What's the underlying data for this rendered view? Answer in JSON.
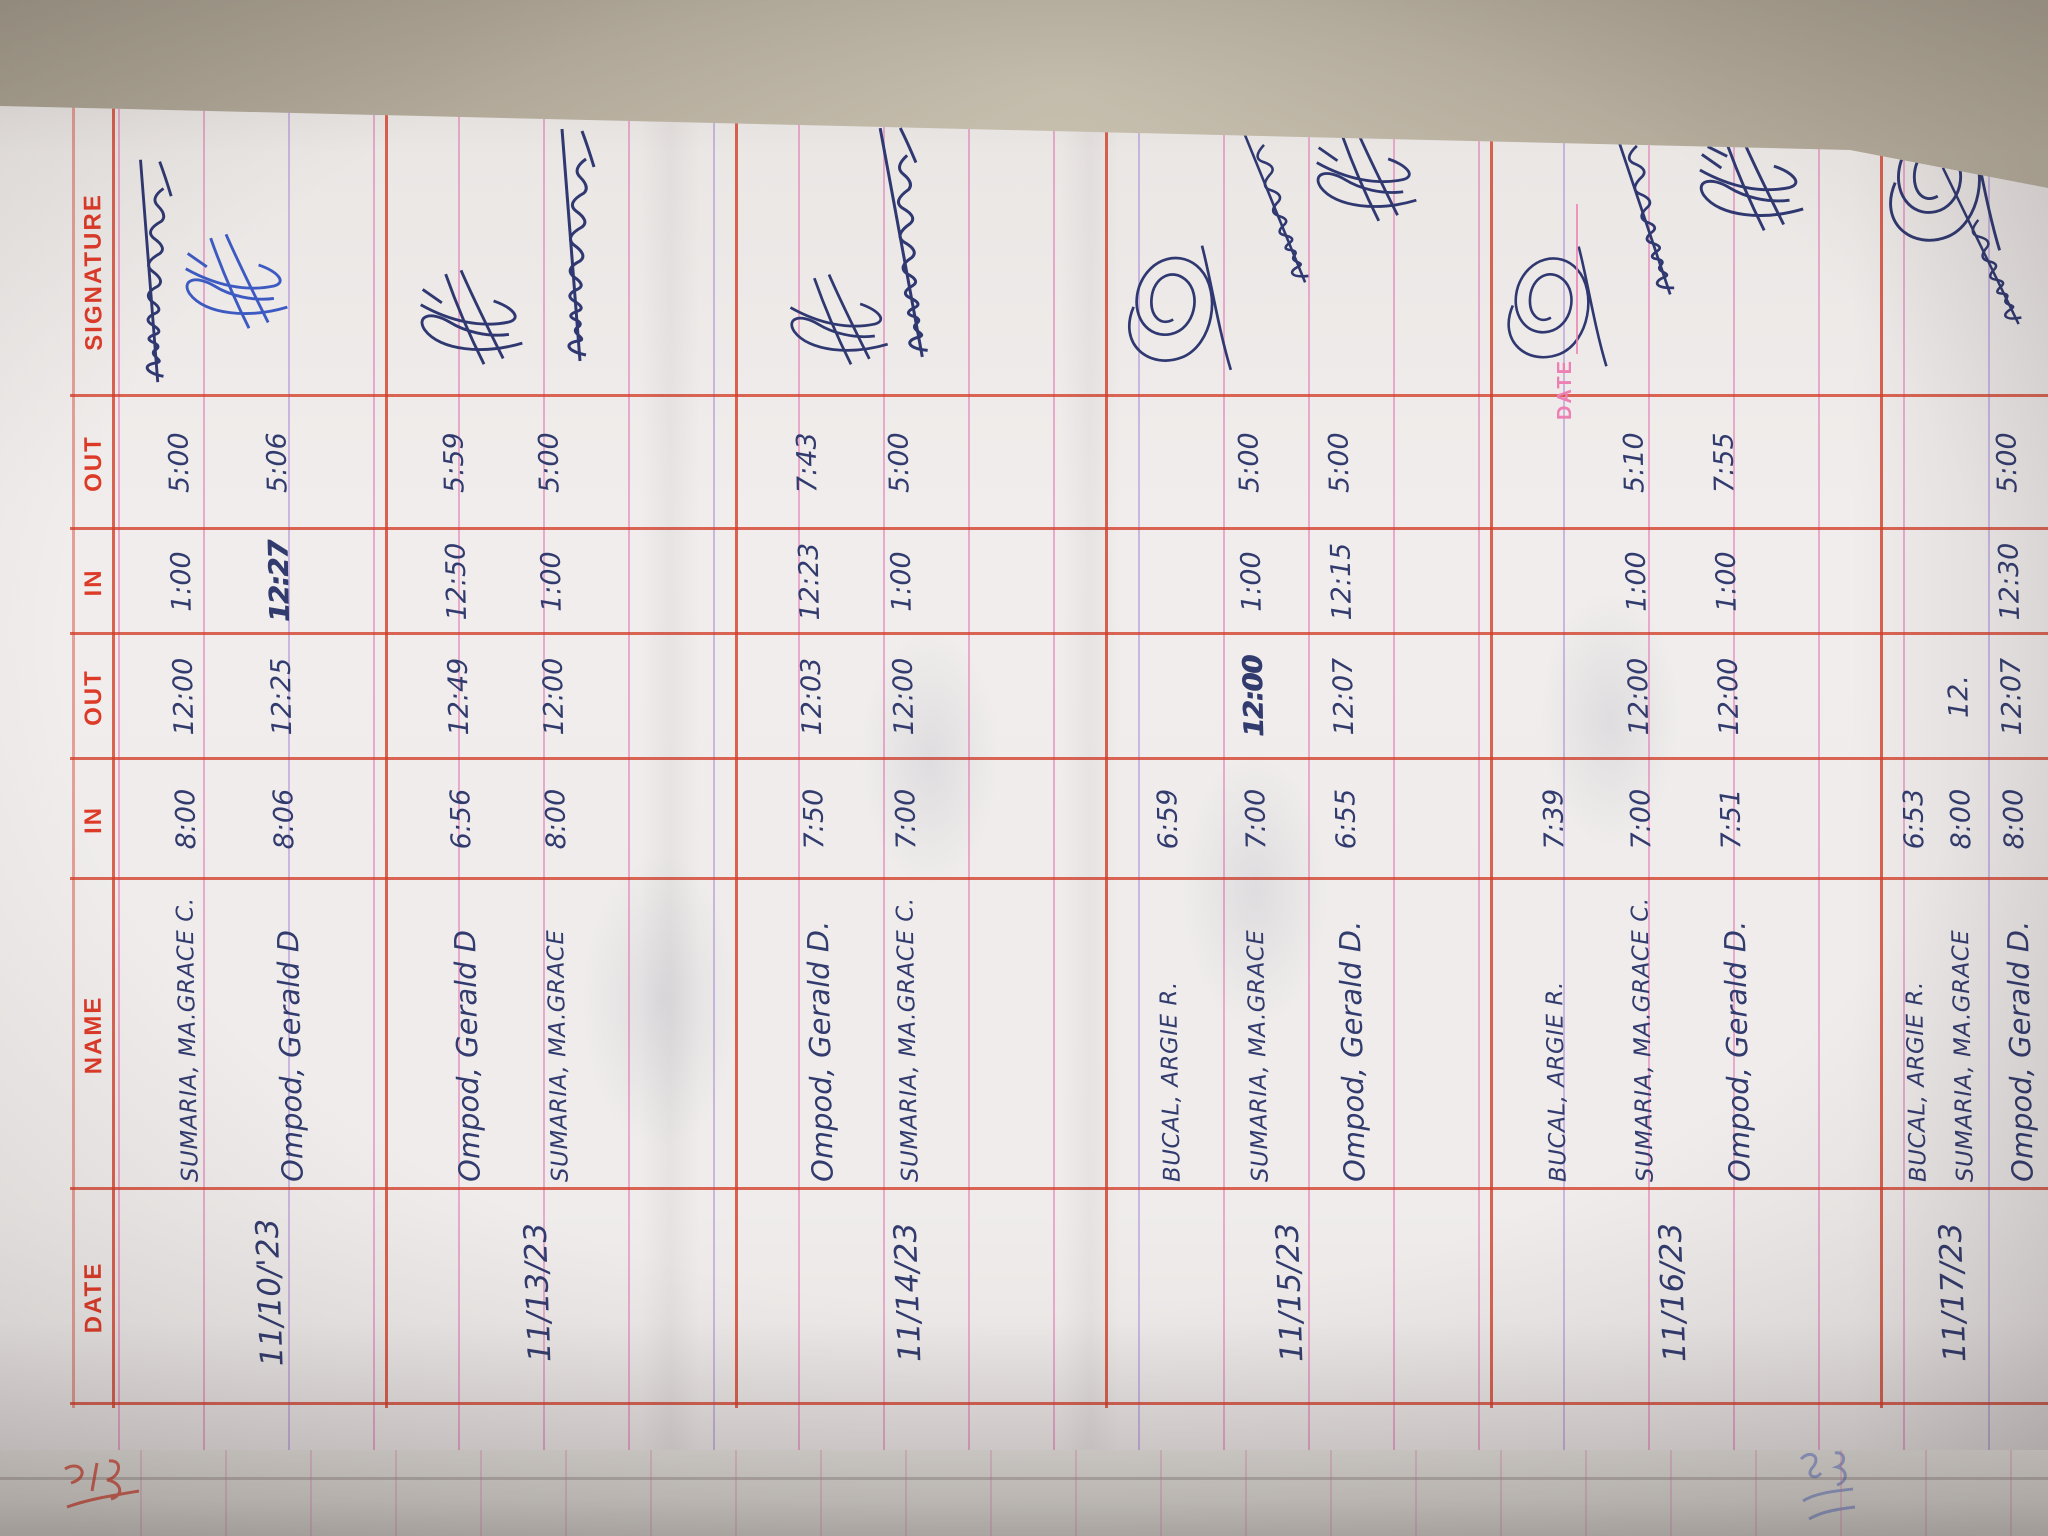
{
  "colors": {
    "grid_red": "#d33e29",
    "header_red": "#dd3a28",
    "entry_ink": "#323b6e",
    "entry_ink_blue": "#3d5ac2",
    "ruling_pink": "#e068ac",
    "printed_pink": "#ee7fb2",
    "paper": "#efeceb",
    "desk": "#b5ac9c"
  },
  "header": {
    "labels": [
      "DATE",
      "NAME",
      "IN",
      "OUT",
      "IN",
      "OUT",
      "SIGNATURE"
    ]
  },
  "printed": {
    "date_label": "DATE"
  },
  "rows": [
    {
      "date": "11/10/'23",
      "entries": [
        {
          "name": "SUMARIA, MA.GRACE C.",
          "in_am": "8:00",
          "out_noon": "12:00",
          "in_pm": "1:00",
          "out_pm": "5:00"
        },
        {
          "name": "Ompod, Gerald D",
          "in_am": "8:06",
          "out_noon": "12:25",
          "in_pm": "12:27",
          "out_pm": "5:06"
        }
      ]
    },
    {
      "date": "11/13/23",
      "entries": [
        {
          "name": "Ompod, Gerald D",
          "in_am": "6:56",
          "out_noon": "12:49",
          "in_pm": "12:50",
          "out_pm": "5:59"
        },
        {
          "name": "SUMARIA, MA.GRACE",
          "in_am": "8:00",
          "out_noon": "12:00",
          "in_pm": "1:00",
          "out_pm": "5:00"
        }
      ]
    },
    {
      "date": "11/14/23",
      "entries": [
        {
          "name": "Ompod, Gerald D.",
          "in_am": "7:50",
          "out_noon": "12:03",
          "in_pm": "12:23",
          "out_pm": "7:43"
        },
        {
          "name": "SUMARIA, MA.GRACE C.",
          "in_am": "7:00",
          "out_noon": "12:00",
          "in_pm": "1:00",
          "out_pm": "5:00"
        }
      ]
    },
    {
      "date": "11/15/23",
      "entries": [
        {
          "name": "BUCAL, ARGIE R.",
          "in_am": "6:59",
          "out_noon": "",
          "in_pm": "",
          "out_pm": ""
        },
        {
          "name": "SUMARIA, MA.GRACE",
          "in_am": "7:00",
          "out_noon": "12:00",
          "in_pm": "1:00",
          "out_pm": "5:00"
        },
        {
          "name": "Ompod, Gerald D.",
          "in_am": "6:55",
          "out_noon": "12:07",
          "in_pm": "12:15",
          "out_pm": "5:00"
        }
      ]
    },
    {
      "date": "11/16/23",
      "entries": [
        {
          "name": "BUCAL, ARGIE R.",
          "in_am": "7:39",
          "out_noon": "",
          "in_pm": "",
          "out_pm": ""
        },
        {
          "name": "SUMARIA, MA.GRACE C.",
          "in_am": "7:00",
          "out_noon": "12:00",
          "in_pm": "1:00",
          "out_pm": "5:10"
        },
        {
          "name": "Ompod, Gerald D.",
          "in_am": "7:51",
          "out_noon": "12:00",
          "in_pm": "1:00",
          "out_pm": "7:55"
        }
      ]
    },
    {
      "date": "11/17/23",
      "entries": [
        {
          "name": "BUCAL, ARGIE R.",
          "in_am": "6:53",
          "out_noon": "",
          "in_pm": "",
          "out_pm": ""
        },
        {
          "name": "SUMARIA, MA.GRACE",
          "in_am": "8:00",
          "out_noon": "12.",
          "in_pm": "",
          "out_pm": ""
        },
        {
          "name": "Ompod, Gerald D.",
          "in_am": "8:00",
          "out_noon": "12:07",
          "in_pm": "12:30",
          "out_pm": "5:00"
        }
      ]
    }
  ]
}
